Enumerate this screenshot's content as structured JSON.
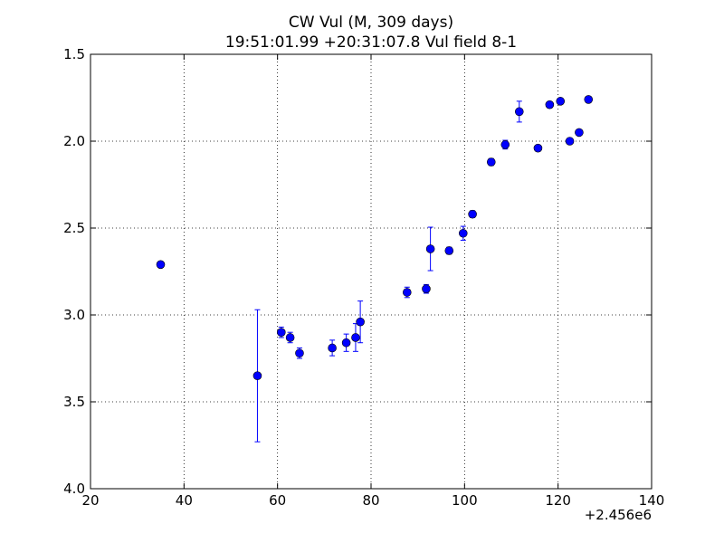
{
  "chart_data": {
    "type": "scatter",
    "title": "CW Vul (M, 309 days)",
    "subtitle": "19:51:01.99 +20:31:07.8 Vul field 8-1",
    "x_offset_label": "+2.456e6",
    "xlim": [
      20,
      140
    ],
    "ylim": [
      1.5,
      4.0
    ],
    "y_inverted": true,
    "grid": true,
    "x_ticks": [
      20,
      40,
      60,
      80,
      100,
      120,
      140
    ],
    "y_ticks": [
      1.5,
      2.0,
      2.5,
      3.0,
      3.5,
      4.0
    ],
    "x_tick_labels": [
      "20",
      "40",
      "60",
      "80",
      "100",
      "120",
      "140"
    ],
    "y_tick_labels": [
      "1.5",
      "2.0",
      "2.5",
      "3.0",
      "3.5",
      "4.0"
    ],
    "marker_color": "#0000ff",
    "points": [
      {
        "x": 35.0,
        "y": 2.71,
        "err": 0.01
      },
      {
        "x": 55.7,
        "y": 3.35,
        "err": 0.38
      },
      {
        "x": 60.8,
        "y": 3.1,
        "err": 0.03
      },
      {
        "x": 62.7,
        "y": 3.13,
        "err": 0.03
      },
      {
        "x": 64.7,
        "y": 3.22,
        "err": 0.03
      },
      {
        "x": 71.7,
        "y": 3.19,
        "err": 0.045
      },
      {
        "x": 74.7,
        "y": 3.16,
        "err": 0.05
      },
      {
        "x": 76.7,
        "y": 3.13,
        "err": 0.08
      },
      {
        "x": 77.7,
        "y": 3.04,
        "err": 0.12
      },
      {
        "x": 87.7,
        "y": 2.87,
        "err": 0.03
      },
      {
        "x": 91.8,
        "y": 2.85,
        "err": 0.025
      },
      {
        "x": 92.7,
        "y": 2.62,
        "err": 0.125
      },
      {
        "x": 96.7,
        "y": 2.63,
        "err": 0.02
      },
      {
        "x": 99.7,
        "y": 2.53,
        "err": 0.04
      },
      {
        "x": 101.7,
        "y": 2.42,
        "err": 0.02
      },
      {
        "x": 105.7,
        "y": 2.12,
        "err": 0.02
      },
      {
        "x": 108.7,
        "y": 2.02,
        "err": 0.025
      },
      {
        "x": 111.7,
        "y": 1.83,
        "err": 0.06
      },
      {
        "x": 115.7,
        "y": 2.04,
        "err": 0.015
      },
      {
        "x": 118.2,
        "y": 1.79,
        "err": 0.012
      },
      {
        "x": 120.5,
        "y": 1.77,
        "err": 0.015
      },
      {
        "x": 122.5,
        "y": 2.0,
        "err": 0.012
      },
      {
        "x": 124.5,
        "y": 1.95,
        "err": 0.012
      },
      {
        "x": 126.5,
        "y": 1.76,
        "err": 0.01
      }
    ]
  }
}
